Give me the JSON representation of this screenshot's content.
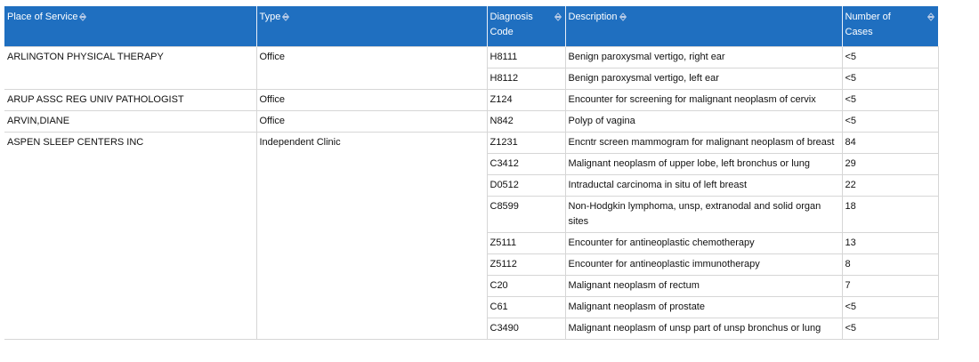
{
  "table": {
    "headers": [
      "Place of Service",
      "Type",
      "Diagnosis Code",
      "Description",
      "Number of Cases"
    ],
    "groups": [
      {
        "place": "ARLINGTON PHYSICAL THERAPY",
        "type": "Office",
        "rows": [
          [
            "H8111",
            "Benign paroxysmal vertigo, right ear",
            "<5"
          ],
          [
            "H8112",
            "Benign paroxysmal vertigo, left ear",
            "<5"
          ]
        ]
      },
      {
        "place": "ARUP ASSC REG UNIV PATHOLOGIST",
        "type": "Office",
        "rows": [
          [
            "Z124",
            "Encounter for screening for malignant neoplasm of cervix",
            "<5"
          ]
        ]
      },
      {
        "place": "ARVIN,DIANE",
        "type": "Office",
        "rows": [
          [
            "N842",
            "Polyp of vagina",
            "<5"
          ]
        ]
      },
      {
        "place": "ASPEN SLEEP CENTERS INC",
        "type": "Independent Clinic",
        "rows": [
          [
            "Z1231",
            "Encntr screen mammogram for malignant neoplasm of breast",
            84
          ],
          [
            "C3412",
            "Malignant neoplasm of upper lobe, left bronchus or lung",
            29
          ],
          [
            "D0512",
            "Intraductal carcinoma in situ of left breast",
            22
          ],
          [
            "C8599",
            "Non-Hodgkin lymphoma, unsp, extranodal and solid organ sites",
            18
          ],
          [
            "Z5111",
            "Encounter for antineoplastic chemotherapy",
            13
          ],
          [
            "Z5112",
            "Encounter for antineoplastic immunotherapy",
            8
          ],
          [
            "C20",
            "Malignant neoplasm of rectum",
            7
          ],
          [
            "C61",
            "Malignant neoplasm of prostate",
            "<5"
          ],
          [
            "C3490",
            "Malignant neoplasm of unsp part of unsp bronchus or lung",
            "<5"
          ]
        ]
      }
    ]
  }
}
